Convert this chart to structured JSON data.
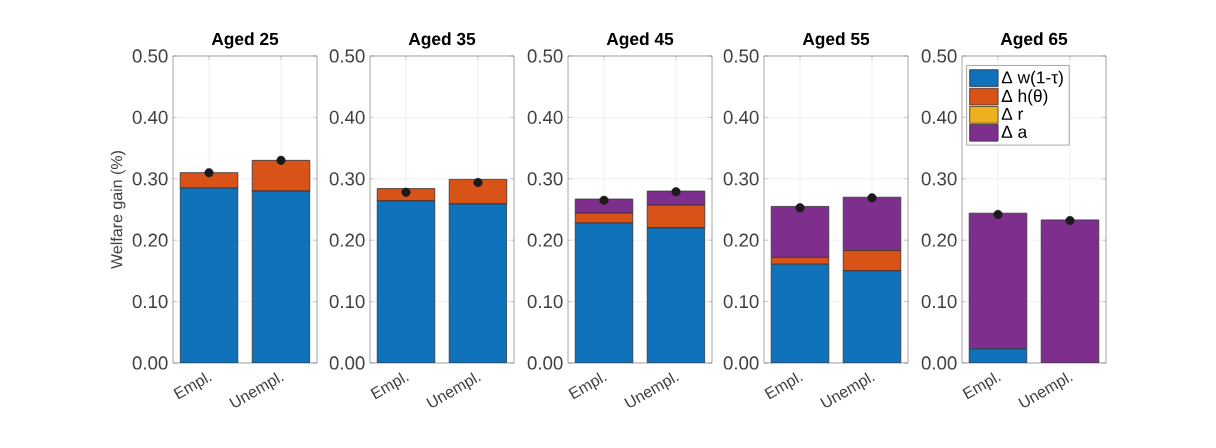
{
  "chart_data": [
    {
      "type": "bar",
      "title": "Aged 25",
      "ylabel": "Welfare gain (%)",
      "categories": [
        "Empl.",
        "Unempl."
      ],
      "stacked": true,
      "grid": true,
      "ylim": [
        0,
        0.5
      ],
      "yticks": [
        {
          "value": 0,
          "label": "0.00"
        },
        {
          "value": 0.1,
          "label": "0.10"
        },
        {
          "value": 0.2,
          "label": "0.20"
        },
        {
          "value": 0.3,
          "label": "0.30"
        },
        {
          "value": 0.4,
          "label": "0.40"
        },
        {
          "value": 0.5,
          "label": "0.50"
        }
      ],
      "series": [
        {
          "color": "#0f72ba",
          "values": [
            0.285,
            0.28
          ]
        },
        {
          "color": "#d95319",
          "values": [
            0.025,
            0.05
          ]
        },
        {
          "color": "#edb120",
          "values": [
            0,
            0
          ]
        },
        {
          "color": "#7e2f8e",
          "values": [
            0,
            0
          ]
        },
        {
          "type": "scatter",
          "marker": "circle",
          "color": "#1a1a1a",
          "x": [
            "Empl.",
            "Unempl."
          ],
          "values": [
            0.31,
            0.33
          ]
        }
      ]
    },
    {
      "type": "bar",
      "title": "Aged 35",
      "categories": [
        "Empl.",
        "Unempl."
      ],
      "stacked": true,
      "grid": true,
      "ylim": [
        0,
        0.5
      ],
      "yticks": [
        {
          "value": 0,
          "label": "0.00"
        },
        {
          "value": 0.1,
          "label": "0.10"
        },
        {
          "value": 0.2,
          "label": "0.20"
        },
        {
          "value": 0.3,
          "label": "0.30"
        },
        {
          "value": 0.4,
          "label": "0.40"
        },
        {
          "value": 0.5,
          "label": "0.50"
        }
      ],
      "series": [
        {
          "color": "#0f72ba",
          "values": [
            0.264,
            0.259
          ]
        },
        {
          "color": "#d95319",
          "values": [
            0.02,
            0.04
          ]
        },
        {
          "color": "#edb120",
          "values": [
            0,
            0
          ]
        },
        {
          "color": "#7e2f8e",
          "values": [
            0,
            0
          ]
        },
        {
          "type": "scatter",
          "marker": "circle",
          "color": "#1a1a1a",
          "x": [
            "Empl.",
            "Unempl."
          ],
          "values": [
            0.278,
            0.294
          ]
        }
      ]
    },
    {
      "type": "bar",
      "title": "Aged 45",
      "categories": [
        "Empl.",
        "Unempl."
      ],
      "stacked": true,
      "grid": true,
      "ylim": [
        0,
        0.5
      ],
      "yticks": [
        {
          "value": 0,
          "label": "0.00"
        },
        {
          "value": 0.1,
          "label": "0.10"
        },
        {
          "value": 0.2,
          "label": "0.20"
        },
        {
          "value": 0.3,
          "label": "0.30"
        },
        {
          "value": 0.4,
          "label": "0.40"
        },
        {
          "value": 0.5,
          "label": "0.50"
        }
      ],
      "series": [
        {
          "color": "#0f72ba",
          "values": [
            0.228,
            0.22
          ]
        },
        {
          "color": "#d95319",
          "values": [
            0.016,
            0.037
          ]
        },
        {
          "color": "#edb120",
          "values": [
            0,
            0
          ]
        },
        {
          "color": "#7e2f8e",
          "values": [
            0.023,
            0.023
          ]
        },
        {
          "type": "scatter",
          "marker": "circle",
          "color": "#1a1a1a",
          "x": [
            "Empl.",
            "Unempl."
          ],
          "values": [
            0.265,
            0.279
          ]
        }
      ]
    },
    {
      "type": "bar",
      "title": "Aged 55",
      "categories": [
        "Empl.",
        "Unempl."
      ],
      "stacked": true,
      "grid": true,
      "ylim": [
        0,
        0.5
      ],
      "yticks": [
        {
          "value": 0,
          "label": "0.00"
        },
        {
          "value": 0.1,
          "label": "0.10"
        },
        {
          "value": 0.2,
          "label": "0.20"
        },
        {
          "value": 0.3,
          "label": "0.30"
        },
        {
          "value": 0.4,
          "label": "0.40"
        },
        {
          "value": 0.5,
          "label": "0.50"
        }
      ],
      "series": [
        {
          "color": "#0f72ba",
          "values": [
            0.161,
            0.15
          ]
        },
        {
          "color": "#d95319",
          "values": [
            0.011,
            0.033
          ]
        },
        {
          "color": "#edb120",
          "values": [
            0,
            0
          ]
        },
        {
          "color": "#7e2f8e",
          "values": [
            0.083,
            0.087
          ]
        },
        {
          "type": "scatter",
          "marker": "circle",
          "color": "#1a1a1a",
          "x": [
            "Empl.",
            "Unempl."
          ],
          "values": [
            0.253,
            0.269
          ]
        }
      ]
    },
    {
      "type": "bar",
      "title": "Aged 65",
      "categories": [
        "Empl.",
        "Unempl."
      ],
      "stacked": true,
      "grid": true,
      "legend": "top left",
      "ylim": [
        0,
        0.5
      ],
      "yticks": [
        {
          "value": 0,
          "label": "0.00"
        },
        {
          "value": 0.1,
          "label": "0.10"
        },
        {
          "value": 0.2,
          "label": "0.20"
        },
        {
          "value": 0.3,
          "label": "0.30"
        },
        {
          "value": 0.4,
          "label": "0.40"
        },
        {
          "value": 0.5,
          "label": "0.50"
        }
      ],
      "series": [
        {
          "name": "Δ w(1-τ)",
          "color": "#0f72ba",
          "values": [
            0.023,
            0
          ]
        },
        {
          "name": "Δ h(θ)",
          "color": "#d95319",
          "values": [
            0,
            0
          ]
        },
        {
          "name": "Δ r",
          "color": "#edb120",
          "values": [
            0,
            0
          ]
        },
        {
          "name": "Δ a",
          "color": "#7e2f8e",
          "values": [
            0.221,
            0.233
          ]
        },
        {
          "type": "scatter",
          "marker": "circle",
          "color": "#1a1a1a",
          "x": [
            "Empl.",
            "Unempl."
          ],
          "values": [
            0.242,
            0.232
          ]
        }
      ]
    }
  ]
}
